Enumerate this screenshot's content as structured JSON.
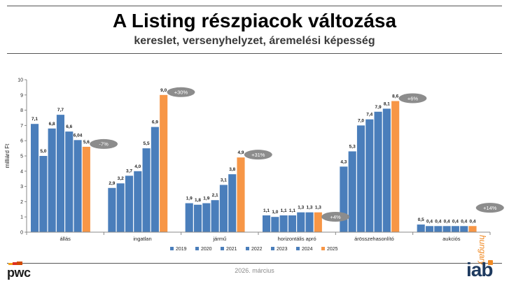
{
  "header": {
    "title": "A Listing részpiacok változása",
    "subtitle": "kereslet, versenyhelyzet, áremelési képesség"
  },
  "footer": {
    "date": "2026. március",
    "logo_left": "pwc",
    "logo_right": "iab",
    "logo_right_sub": "hungary"
  },
  "colors": {
    "bar": "#4a7ebb",
    "bar_highlight": "#f79646",
    "bubble": "#8c8c8c",
    "grid": "#d9d9d9",
    "brand_orange": "#f08a24",
    "brand_dark": "#1e3a5f"
  },
  "chart_data": {
    "type": "bar",
    "ylabel": "milliárd Ft",
    "ylim": [
      0,
      10
    ],
    "yticks": [
      0,
      1,
      2,
      3,
      4,
      5,
      6,
      7,
      8,
      9,
      10
    ],
    "categories": [
      "állás",
      "ingatlan",
      "jármű",
      "horizontális apró",
      "árösszehasonlító",
      "aukciós"
    ],
    "series": [
      {
        "name": "2019",
        "values": [
          7.1,
          2.9,
          1.9,
          1.1,
          4.3,
          0.5
        ],
        "labels": [
          "7,1",
          "2,9",
          "1,9",
          "1,1",
          "4,3",
          "0,5"
        ]
      },
      {
        "name": "2020",
        "values": [
          5.0,
          3.2,
          1.8,
          1.0,
          5.3,
          0.4
        ],
        "labels": [
          "5,0",
          "3,2",
          "1,8",
          "1,0",
          "5,3",
          "0,4"
        ]
      },
      {
        "name": "2021",
        "values": [
          6.8,
          3.7,
          1.9,
          1.1,
          7.0,
          0.4
        ],
        "labels": [
          "6,8",
          "3,7",
          "1,9",
          "1,1",
          "7,0",
          "0,4"
        ]
      },
      {
        "name": "2022",
        "values": [
          7.7,
          4.0,
          2.1,
          1.1,
          7.4,
          0.4
        ],
        "labels": [
          "7,7",
          "4,0",
          "2,1",
          "1,1",
          "7,4",
          "0,4"
        ]
      },
      {
        "name": "2023",
        "values": [
          6.6,
          5.5,
          3.1,
          1.3,
          7.9,
          0.4
        ],
        "labels": [
          "6,6",
          "5,5",
          "3,1",
          "1,3",
          "7,9",
          "0,4"
        ]
      },
      {
        "name": "2024",
        "values": [
          6.04,
          6.9,
          3.8,
          1.3,
          8.1,
          0.4
        ],
        "labels": [
          "6,04",
          "6,9",
          "3,8",
          "1,3",
          "8,1",
          "0,4"
        ]
      },
      {
        "name": "2025",
        "values": [
          5.6,
          9.0,
          4.9,
          1.3,
          8.6,
          0.4
        ],
        "labels": [
          "5,6",
          "9,0",
          "4,9",
          "1,3",
          "8,6",
          "0,4"
        ]
      }
    ],
    "annotations": [
      "-7%",
      "+30%",
      "+31%",
      "+4%",
      "+6%",
      "+14%"
    ],
    "legend": "bottom",
    "grid": false
  }
}
